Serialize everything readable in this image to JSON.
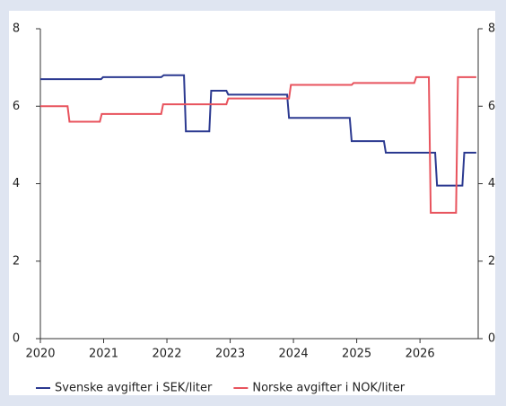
{
  "chart_data": {
    "type": "line",
    "xlim": [
      2020,
      2026.92
    ],
    "xticks": [
      2020,
      2021,
      2022,
      2023,
      2024,
      2025,
      2026
    ],
    "ylim": [
      0,
      8
    ],
    "yticks": [
      0,
      2,
      4,
      6,
      8
    ],
    "y2lim": [
      0,
      8
    ],
    "y2ticks": [
      0,
      2,
      4,
      6,
      8
    ],
    "legend": "bottom",
    "series": [
      {
        "name": "Svenske avgifter i SEK/liter",
        "color": "#2b3990",
        "x": [
          2020,
          2020.96,
          2020.99,
          2021.91,
          2021.95,
          2022.27,
          2022.3,
          2022.67,
          2022.7,
          2022.94,
          2022.97,
          2023.9,
          2023.93,
          2024.89,
          2024.92,
          2025.43,
          2025.46,
          2026.24,
          2026.27,
          2026.67,
          2026.7,
          2026.89
        ],
        "values": [
          6.7,
          6.7,
          6.75,
          6.75,
          6.8,
          6.8,
          5.35,
          5.35,
          6.4,
          6.4,
          6.3,
          6.3,
          5.7,
          5.7,
          5.1,
          5.1,
          4.8,
          4.8,
          3.95,
          3.95,
          4.8,
          4.8
        ]
      },
      {
        "name": "Norske avgifter i NOK/liter",
        "color": "#e8535d",
        "x": [
          2020,
          2020.43,
          2020.46,
          2020.94,
          2020.97,
          2021.91,
          2021.94,
          2022.94,
          2022.97,
          2023.93,
          2023.96,
          2024.92,
          2024.95,
          2025.91,
          2025.94,
          2026.14,
          2026.17,
          2026.57,
          2026.6,
          2026.89
        ],
        "values": [
          6.0,
          6.0,
          5.6,
          5.6,
          5.8,
          5.8,
          6.05,
          6.05,
          6.2,
          6.2,
          6.55,
          6.55,
          6.6,
          6.6,
          6.75,
          6.75,
          3.25,
          3.25,
          6.75,
          6.75
        ]
      }
    ]
  }
}
